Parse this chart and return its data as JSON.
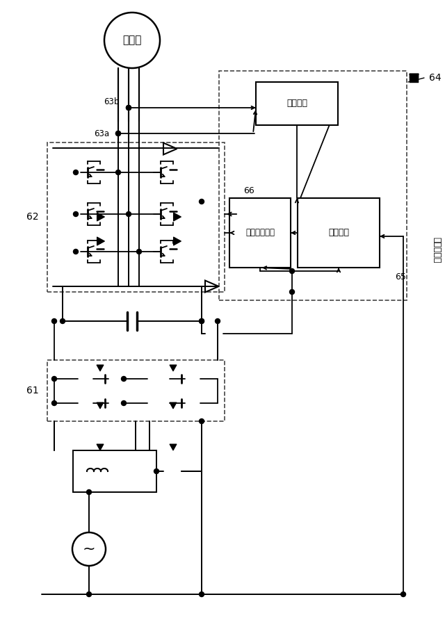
{
  "bg_color": "#ffffff",
  "line_color": "#000000",
  "fig_width": 6.4,
  "fig_height": 8.92,
  "labels": {
    "motor": "電動機",
    "current_control": "電流制御",
    "voltage_limit": "出力電圧制限",
    "speed_detect": "速度検出",
    "current_cmd": "電流指令値",
    "label_62": "62",
    "label_61": "61",
    "label_63a": "63a",
    "label_63b": "63b",
    "label_64": "64",
    "label_65": "65",
    "label_66": "66"
  }
}
